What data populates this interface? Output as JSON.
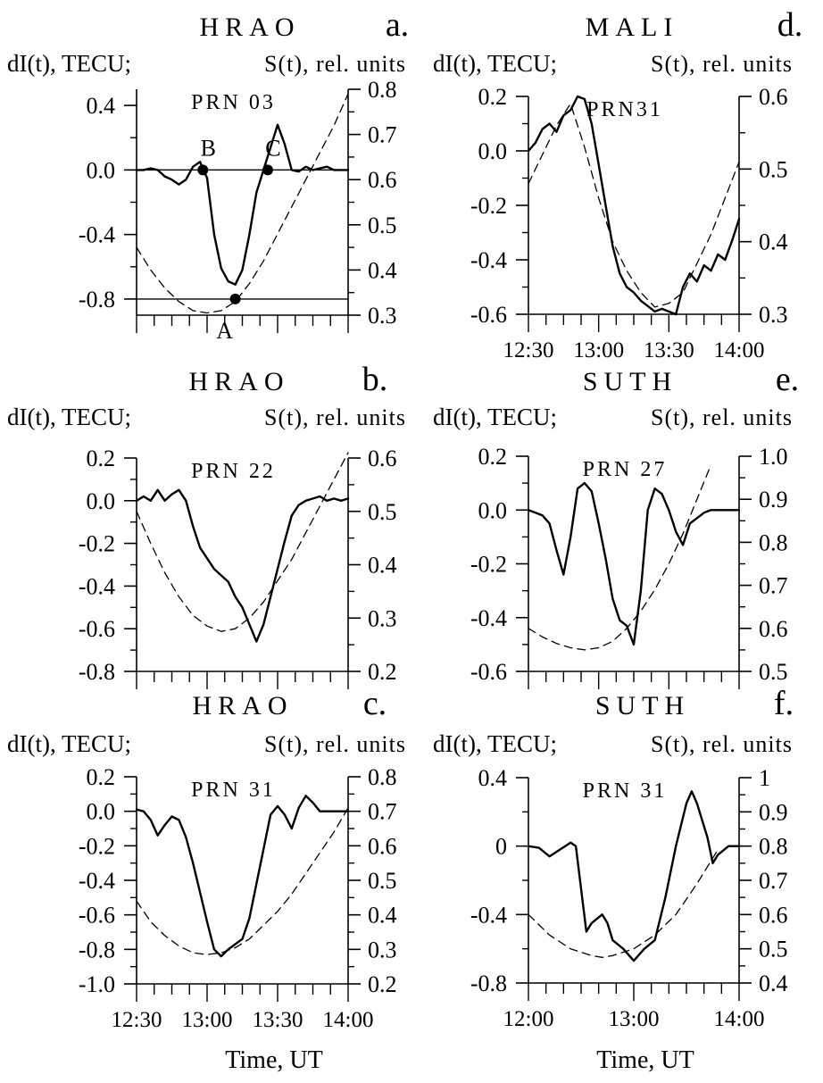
{
  "figure": {
    "xlabels": {
      "left": "Time, UT",
      "right": "Time, UT"
    }
  },
  "chart_data": [
    {
      "id": "a",
      "type": "line",
      "station": "HRAO",
      "panel_letter": "a.",
      "prn": "PRN 03",
      "ylabel_left": "dI(t), TECU;",
      "ylabel_right": "S(t), rel. units",
      "xlim": [
        12.5,
        14.0
      ],
      "ylim_left": [
        -0.9,
        0.5
      ],
      "ylim_right": [
        0.3,
        0.8
      ],
      "yticks_left": [
        -0.8,
        -0.4,
        0.0,
        0.4
      ],
      "yticklabels_left": [
        "-0.8",
        "-0.4",
        "0.0",
        "0.4"
      ],
      "yticks_right": [
        0.3,
        0.4,
        0.5,
        0.6,
        0.7,
        0.8
      ],
      "yticklabels_right": [
        "0.3",
        "0.4",
        "0.5",
        "0.6",
        "0.7",
        "0.8"
      ],
      "xticks": [
        12.5,
        13.0,
        13.5,
        14.0
      ],
      "xticklabels": [],
      "zero_line": true,
      "markers": [
        {
          "label": "B",
          "x": 12.97,
          "y": 0.0,
          "label_pos": "above"
        },
        {
          "label": "C",
          "x": 13.43,
          "y": 0.0,
          "label_pos": "above"
        },
        {
          "label": "A",
          "x": 13.2,
          "y": -0.8,
          "label_pos": "below"
        }
      ],
      "series": [
        {
          "axis": "left",
          "style": "solid",
          "x": [
            12.5,
            12.55,
            12.6,
            12.65,
            12.7,
            12.75,
            12.8,
            12.85,
            12.9,
            12.95,
            13.0,
            13.05,
            13.1,
            13.15,
            13.2,
            13.25,
            13.3,
            13.35,
            13.4,
            13.45,
            13.5,
            13.55,
            13.6,
            13.65,
            13.7,
            13.75,
            13.8,
            13.85,
            13.9,
            13.95,
            14.0
          ],
          "y": [
            0.0,
            0.0,
            0.01,
            0.0,
            -0.04,
            -0.06,
            -0.09,
            -0.06,
            0.02,
            0.05,
            -0.05,
            -0.4,
            -0.61,
            -0.69,
            -0.71,
            -0.62,
            -0.4,
            -0.14,
            0.0,
            0.14,
            0.28,
            0.16,
            0.0,
            -0.01,
            0.02,
            0.0,
            0.01,
            0.02,
            0.0,
            0.0,
            0.0
          ]
        },
        {
          "axis": "right",
          "style": "dashed",
          "x": [
            12.5,
            12.6,
            12.7,
            12.8,
            12.9,
            13.0,
            13.1,
            13.2,
            13.3,
            13.4,
            13.5,
            13.6,
            13.7,
            13.8,
            13.9,
            14.0
          ],
          "y": [
            0.45,
            0.4,
            0.36,
            0.33,
            0.31,
            0.305,
            0.31,
            0.33,
            0.37,
            0.42,
            0.48,
            0.54,
            0.6,
            0.66,
            0.72,
            0.79
          ]
        }
      ]
    },
    {
      "id": "b",
      "type": "line",
      "station": "HRAO",
      "panel_letter": "b.",
      "prn": "PRN 22",
      "ylabel_left": "dI(t), TECU;",
      "ylabel_right": "S(t), rel. units",
      "xlim": [
        12.5,
        14.0
      ],
      "ylim_left": [
        -0.8,
        0.2
      ],
      "ylim_right": [
        0.2,
        0.6
      ],
      "yticks_left": [
        -0.8,
        -0.6,
        -0.4,
        -0.2,
        0.0,
        0.2
      ],
      "yticklabels_left": [
        "-0.8",
        "-0.6",
        "-0.4",
        "-0.2",
        "0.0",
        "0.2"
      ],
      "yticks_right": [
        0.2,
        0.3,
        0.4,
        0.5,
        0.6
      ],
      "yticklabels_right": [
        "0.2",
        "0.3",
        "0.4",
        "0.5",
        "0.6"
      ],
      "xticks": [
        12.5,
        13.0,
        13.5,
        14.0
      ],
      "xticklabels": [],
      "zero_line": false,
      "markers": [],
      "series": [
        {
          "axis": "left",
          "style": "solid",
          "x": [
            12.5,
            12.55,
            12.6,
            12.65,
            12.7,
            12.75,
            12.8,
            12.85,
            12.9,
            12.95,
            13.0,
            13.05,
            13.1,
            13.15,
            13.2,
            13.25,
            13.3,
            13.35,
            13.4,
            13.45,
            13.5,
            13.55,
            13.6,
            13.65,
            13.7,
            13.75,
            13.8,
            13.85,
            13.9,
            13.95,
            14.0
          ],
          "y": [
            0.0,
            0.02,
            0.0,
            0.05,
            0.0,
            0.03,
            0.05,
            0.0,
            -0.12,
            -0.22,
            -0.27,
            -0.32,
            -0.35,
            -0.38,
            -0.45,
            -0.5,
            -0.58,
            -0.66,
            -0.58,
            -0.45,
            -0.32,
            -0.19,
            -0.07,
            -0.02,
            0.0,
            0.01,
            0.02,
            0.0,
            0.01,
            0.0,
            0.01
          ]
        },
        {
          "axis": "right",
          "style": "dashed",
          "x": [
            12.5,
            12.6,
            12.7,
            12.8,
            12.9,
            13.0,
            13.1,
            13.2,
            13.3,
            13.4,
            13.5,
            13.6,
            13.7,
            13.8,
            13.9,
            14.0
          ],
          "y": [
            0.5,
            0.44,
            0.385,
            0.34,
            0.305,
            0.285,
            0.275,
            0.28,
            0.3,
            0.33,
            0.37,
            0.41,
            0.46,
            0.51,
            0.56,
            0.61
          ]
        }
      ]
    },
    {
      "id": "c",
      "type": "line",
      "station": "HRAO",
      "panel_letter": "c.",
      "prn": "PRN 31",
      "ylabel_left": "dI(t), TECU;",
      "ylabel_right": "S(t), rel. units",
      "xlim": [
        12.5,
        14.0
      ],
      "ylim_left": [
        -1.0,
        0.2
      ],
      "ylim_right": [
        0.2,
        0.8
      ],
      "yticks_left": [
        -1.0,
        -0.8,
        -0.6,
        -0.4,
        -0.2,
        0.0,
        0.2
      ],
      "yticklabels_left": [
        "-1.0",
        "-0.8",
        "-0.6",
        "-0.4",
        "-0.2",
        "0.0",
        "0.2"
      ],
      "yticks_right": [
        0.2,
        0.3,
        0.4,
        0.5,
        0.6,
        0.7,
        0.8
      ],
      "yticklabels_right": [
        "0.2",
        "0.3",
        "0.4",
        "0.5",
        "0.6",
        "0.7",
        "0.8"
      ],
      "xticks": [
        12.5,
        13.0,
        13.5,
        14.0
      ],
      "xticklabels": [
        "12:30",
        "13:00",
        "13:30",
        "14:00"
      ],
      "zero_line": false,
      "markers": [],
      "series": [
        {
          "axis": "left",
          "style": "solid",
          "x": [
            12.5,
            12.55,
            12.6,
            12.65,
            12.7,
            12.75,
            12.8,
            12.85,
            12.9,
            12.95,
            13.0,
            13.05,
            13.1,
            13.15,
            13.2,
            13.25,
            13.3,
            13.35,
            13.4,
            13.45,
            13.5,
            13.55,
            13.6,
            13.65,
            13.7,
            13.75,
            13.8,
            13.85,
            13.9,
            13.95,
            14.0
          ],
          "y": [
            0.01,
            0.0,
            -0.05,
            -0.14,
            -0.08,
            -0.03,
            -0.05,
            -0.15,
            -0.3,
            -0.47,
            -0.64,
            -0.8,
            -0.84,
            -0.8,
            -0.77,
            -0.74,
            -0.62,
            -0.42,
            -0.22,
            -0.02,
            0.03,
            -0.02,
            -0.1,
            0.02,
            0.09,
            0.05,
            0.0,
            0.0,
            0.0,
            0.0,
            0.0
          ]
        },
        {
          "axis": "right",
          "style": "dashed",
          "x": [
            12.5,
            12.6,
            12.7,
            12.8,
            12.9,
            13.0,
            13.1,
            13.2,
            13.3,
            13.4,
            13.5,
            13.6,
            13.7,
            13.8,
            13.9,
            14.0
          ],
          "y": [
            0.44,
            0.38,
            0.34,
            0.31,
            0.29,
            0.285,
            0.29,
            0.305,
            0.33,
            0.37,
            0.41,
            0.46,
            0.52,
            0.58,
            0.64,
            0.71
          ]
        }
      ]
    },
    {
      "id": "d",
      "type": "line",
      "station": "MALI",
      "panel_letter": "d.",
      "prn": "PRN31",
      "ylabel_left": "dI(t), TECU;",
      "ylabel_right": "S(t), rel. units",
      "xlim": [
        12.5,
        14.0
      ],
      "ylim_left": [
        -0.6,
        0.2
      ],
      "ylim_right": [
        0.3,
        0.6
      ],
      "yticks_left": [
        -0.6,
        -0.4,
        -0.2,
        0.0,
        0.2
      ],
      "yticklabels_left": [
        "-0.6",
        "-0.4",
        "-0.2",
        "0.0",
        "0.2"
      ],
      "yticks_right": [
        0.3,
        0.4,
        0.5,
        0.6
      ],
      "yticklabels_right": [
        "0.3",
        "0.4",
        "0.5",
        "0.6"
      ],
      "xticks": [
        12.5,
        13.0,
        13.5,
        14.0
      ],
      "xticklabels": [
        "12:30",
        "13:00",
        "13:30",
        "14:00"
      ],
      "zero_line": false,
      "markers": [],
      "series": [
        {
          "axis": "left",
          "style": "solid",
          "x": [
            12.5,
            12.55,
            12.6,
            12.65,
            12.7,
            12.75,
            12.8,
            12.85,
            12.9,
            12.95,
            13.0,
            13.05,
            13.1,
            13.15,
            13.2,
            13.25,
            13.3,
            13.35,
            13.4,
            13.45,
            13.5,
            13.55,
            13.6,
            13.65,
            13.7,
            13.75,
            13.8,
            13.85,
            13.9,
            13.95,
            14.0
          ],
          "y": [
            0.0,
            0.03,
            0.08,
            0.1,
            0.07,
            0.13,
            0.15,
            0.2,
            0.19,
            0.1,
            -0.05,
            -0.2,
            -0.35,
            -0.45,
            -0.5,
            -0.52,
            -0.55,
            -0.57,
            -0.59,
            -0.58,
            -0.59,
            -0.6,
            -0.5,
            -0.45,
            -0.48,
            -0.42,
            -0.44,
            -0.38,
            -0.4,
            -0.33,
            -0.25
          ]
        },
        {
          "axis": "right",
          "style": "dashed",
          "x": [
            12.5,
            12.6,
            12.7,
            12.8,
            12.9,
            13.0,
            13.1,
            13.2,
            13.3,
            13.4,
            13.5,
            13.6,
            13.7,
            13.8,
            13.9,
            14.0
          ],
          "y": [
            0.48,
            0.52,
            0.56,
            0.59,
            0.53,
            0.46,
            0.4,
            0.36,
            0.33,
            0.31,
            0.315,
            0.33,
            0.37,
            0.41,
            0.46,
            0.51
          ]
        }
      ]
    },
    {
      "id": "e",
      "type": "line",
      "station": "SUTH",
      "panel_letter": "e.",
      "prn": "PRN 27",
      "ylabel_left": "dI(t), TECU;",
      "ylabel_right": "S(t), rel. units",
      "xlim": [
        12.5,
        14.0
      ],
      "ylim_left": [
        -0.6,
        0.2
      ],
      "ylim_right": [
        0.5,
        1.0
      ],
      "yticks_left": [
        -0.6,
        -0.4,
        -0.2,
        0.0,
        0.2
      ],
      "yticklabels_left": [
        "-0.6",
        "-0.4",
        "-0.2",
        "0.0",
        "0.2"
      ],
      "yticks_right": [
        0.5,
        0.6,
        0.7,
        0.8,
        0.9,
        1.0
      ],
      "yticklabels_right": [
        "0.5",
        "0.6",
        "0.7",
        "0.8",
        "0.9",
        "1.0"
      ],
      "xticks": [
        12.5,
        13.0,
        13.5,
        14.0
      ],
      "xticklabels": [],
      "zero_line": false,
      "markers": [],
      "series": [
        {
          "axis": "left",
          "style": "solid",
          "x": [
            12.5,
            12.55,
            12.6,
            12.65,
            12.7,
            12.75,
            12.8,
            12.85,
            12.9,
            12.95,
            13.0,
            13.05,
            13.1,
            13.15,
            13.2,
            13.25,
            13.3,
            13.35,
            13.4,
            13.45,
            13.5,
            13.55,
            13.6,
            13.65,
            13.7,
            13.75,
            13.8,
            13.85,
            13.9,
            13.95,
            14.0
          ],
          "y": [
            0.0,
            -0.01,
            -0.02,
            -0.05,
            -0.15,
            -0.24,
            -0.1,
            0.08,
            0.1,
            0.07,
            -0.05,
            -0.18,
            -0.33,
            -0.41,
            -0.43,
            -0.5,
            -0.3,
            0.0,
            0.08,
            0.06,
            0.0,
            -0.08,
            -0.13,
            -0.05,
            -0.03,
            -0.01,
            0.0,
            0.0,
            0.0,
            0.0,
            0.0
          ]
        },
        {
          "axis": "right",
          "style": "dashed",
          "x": [
            12.5,
            12.6,
            12.7,
            12.8,
            12.9,
            13.0,
            13.1,
            13.2,
            13.3,
            13.4,
            13.5,
            13.6,
            13.7,
            13.8
          ],
          "y": [
            0.6,
            0.58,
            0.565,
            0.555,
            0.55,
            0.555,
            0.57,
            0.6,
            0.64,
            0.69,
            0.75,
            0.82,
            0.9,
            0.98
          ]
        }
      ]
    },
    {
      "id": "f",
      "type": "line",
      "station": "SUTH",
      "panel_letter": "f.",
      "prn": "PRN 31",
      "ylabel_left": "dI(t), TECU;",
      "ylabel_right": "S(t), rel. units",
      "xlim": [
        12.0,
        14.0
      ],
      "ylim_left": [
        -0.8,
        0.4
      ],
      "ylim_right": [
        0.4,
        1.0
      ],
      "yticks_left": [
        -0.8,
        -0.4,
        0.0,
        0.4
      ],
      "yticklabels_left": [
        "-0.8",
        "-0.4",
        "0",
        "0.4"
      ],
      "yticks_right": [
        0.4,
        0.5,
        0.6,
        0.7,
        0.8,
        0.9,
        1.0
      ],
      "yticklabels_right": [
        "0.4",
        "0.5",
        "0.6",
        "0.7",
        "0.8",
        "0.9",
        "1"
      ],
      "xticks": [
        12.0,
        13.0,
        14.0
      ],
      "xticklabels": [
        "12:00",
        "13:00",
        "14:00"
      ],
      "zero_line": false,
      "markers": [],
      "series": [
        {
          "axis": "left",
          "style": "solid",
          "x": [
            12.0,
            12.1,
            12.2,
            12.3,
            12.4,
            12.45,
            12.5,
            12.55,
            12.6,
            12.7,
            12.75,
            12.8,
            12.9,
            13.0,
            13.1,
            13.2,
            13.3,
            13.4,
            13.5,
            13.55,
            13.6,
            13.7,
            13.75,
            13.8,
            13.9,
            14.0
          ],
          "y": [
            0.0,
            -0.01,
            -0.06,
            -0.02,
            0.02,
            0.0,
            -0.25,
            -0.5,
            -0.45,
            -0.4,
            -0.45,
            -0.55,
            -0.6,
            -0.67,
            -0.6,
            -0.55,
            -0.3,
            0.0,
            0.25,
            0.32,
            0.25,
            0.05,
            -0.1,
            -0.05,
            0.0,
            0.0
          ]
        },
        {
          "axis": "right",
          "style": "dashed",
          "x": [
            12.0,
            12.2,
            12.4,
            12.6,
            12.7,
            12.8,
            13.0,
            13.2,
            13.4,
            13.6,
            13.8
          ],
          "y": [
            0.6,
            0.54,
            0.5,
            0.48,
            0.475,
            0.48,
            0.5,
            0.54,
            0.6,
            0.69,
            0.79
          ]
        }
      ]
    }
  ]
}
